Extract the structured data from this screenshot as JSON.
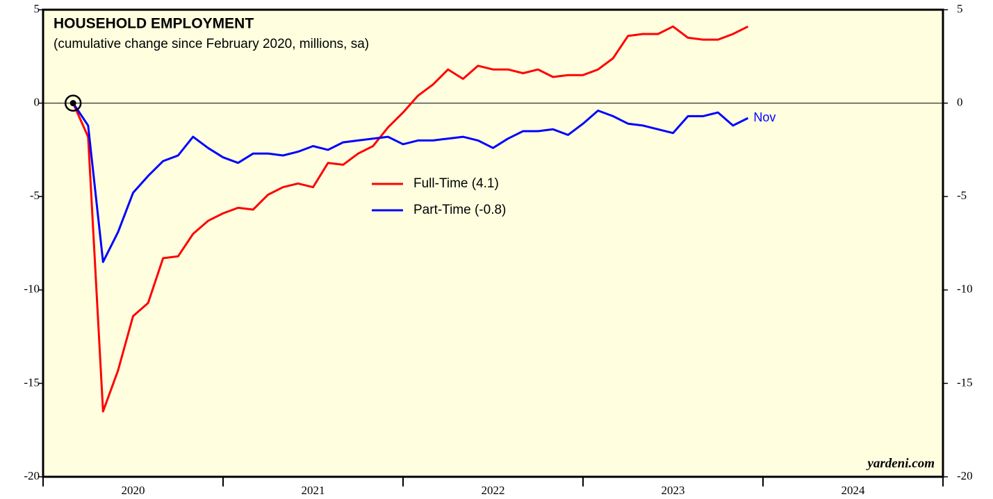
{
  "chart_data": {
    "type": "line",
    "title": "HOUSEHOLD EMPLOYMENT",
    "subtitle": "(cumulative change since February 2020, millions, sa)",
    "x": [
      "2020-02",
      "2020-03",
      "2020-04",
      "2020-05",
      "2020-06",
      "2020-07",
      "2020-08",
      "2020-09",
      "2020-10",
      "2020-11",
      "2020-12",
      "2021-01",
      "2021-02",
      "2021-03",
      "2021-04",
      "2021-05",
      "2021-06",
      "2021-07",
      "2021-08",
      "2021-09",
      "2021-10",
      "2021-11",
      "2021-12",
      "2022-01",
      "2022-02",
      "2022-03",
      "2022-04",
      "2022-05",
      "2022-06",
      "2022-07",
      "2022-08",
      "2022-09",
      "2022-10",
      "2022-11",
      "2022-12",
      "2023-01",
      "2023-02",
      "2023-03",
      "2023-04",
      "2023-05",
      "2023-06",
      "2023-07",
      "2023-08",
      "2023-09",
      "2023-10",
      "2023-11"
    ],
    "series": [
      {
        "name": "Full-Time (4.1)",
        "color": "#ff0000",
        "values": [
          0,
          -1.8,
          -16.5,
          -14.3,
          -11.4,
          -10.7,
          -8.3,
          -8.2,
          -7.0,
          -6.3,
          -5.9,
          -5.6,
          -5.7,
          -4.9,
          -4.5,
          -4.3,
          -4.5,
          -3.2,
          -3.3,
          -2.7,
          -2.3,
          -1.3,
          -0.5,
          0.4,
          1.0,
          1.8,
          1.3,
          2.0,
          1.8,
          1.8,
          1.6,
          1.8,
          1.4,
          1.5,
          1.5,
          1.8,
          2.4,
          3.6,
          3.7,
          3.7,
          4.1,
          3.5,
          3.4,
          3.4,
          3.7,
          4.1
        ]
      },
      {
        "name": "Part-Time (-0.8)",
        "color": "#0000ff",
        "values": [
          0,
          -1.2,
          -8.5,
          -6.9,
          -4.8,
          -3.9,
          -3.1,
          -2.8,
          -1.8,
          -2.4,
          -2.9,
          -3.2,
          -2.7,
          -2.7,
          -2.8,
          -2.6,
          -2.3,
          -2.5,
          -2.1,
          -2.0,
          -1.9,
          -1.8,
          -2.2,
          -2.0,
          -2.0,
          -1.9,
          -1.8,
          -2.0,
          -2.4,
          -1.9,
          -1.5,
          -1.5,
          -1.4,
          -1.7,
          -1.1,
          -0.4,
          -0.7,
          -1.1,
          -1.2,
          -1.4,
          -1.6,
          -0.7,
          -0.7,
          -0.5,
          -1.2,
          -0.8
        ]
      }
    ],
    "end_label": "Nov",
    "source": "yardeni.com",
    "xlim": [
      "2020-01",
      "2024-12"
    ],
    "xticks": [
      2020,
      2021,
      2022,
      2023,
      2024
    ],
    "ylim": [
      -20,
      5
    ],
    "yticks": [
      -20,
      -15,
      -10,
      -5,
      0,
      5
    ],
    "reference_line": 0,
    "background": "#ffffe0"
  }
}
